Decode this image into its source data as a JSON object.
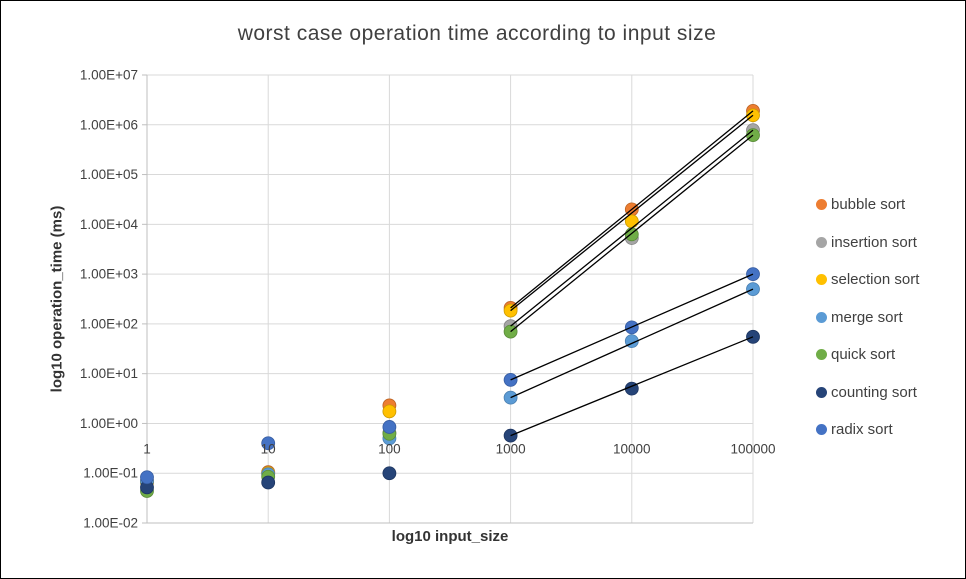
{
  "chart_data": {
    "type": "scatter",
    "title": "worst case operation time according to input size",
    "xlabel": "log10 input_size",
    "ylabel": "log10 operation_time (ms)",
    "x_scale": "log",
    "y_scale": "log",
    "x_range": [
      1,
      100000
    ],
    "y_range": [
      0.01,
      10000000
    ],
    "grid": true,
    "legend_position": "right",
    "x": [
      1,
      10,
      100,
      1000,
      10000,
      100000
    ],
    "x_ticks": [
      {
        "label": "1",
        "value": 1
      },
      {
        "label": "10",
        "value": 10
      },
      {
        "label": "100",
        "value": 100
      },
      {
        "label": "1000",
        "value": 1000
      },
      {
        "label": "10000",
        "value": 10000
      },
      {
        "label": "100000",
        "value": 100000
      }
    ],
    "y_ticks": [
      {
        "label": "1.00E+07",
        "value": 10000000
      },
      {
        "label": "1.00E+06",
        "value": 1000000
      },
      {
        "label": "1.00E+05",
        "value": 100000
      },
      {
        "label": "1.00E+04",
        "value": 10000
      },
      {
        "label": "1.00E+03",
        "value": 1000
      },
      {
        "label": "1.00E+02",
        "value": 100
      },
      {
        "label": "1.00E+01",
        "value": 10
      },
      {
        "label": "1.00E+00",
        "value": 1
      },
      {
        "label": "1.00E-01",
        "value": 0.1
      },
      {
        "label": "1.00E-02",
        "value": 0.01
      }
    ],
    "series": [
      {
        "name": "bubble sort",
        "color": "#ED7D31",
        "border": "#BC6424",
        "values": [
          0.07,
          0.105,
          2.3,
          210,
          20000,
          1900000
        ],
        "trendline": {
          "x1": 1000,
          "y1": 210,
          "x2": 100000,
          "y2": 1900000
        }
      },
      {
        "name": "insertion sort",
        "color": "#A5A5A5",
        "border": "#848484",
        "values": [
          0.065,
          0.1,
          0.65,
          90,
          5300,
          780000
        ],
        "trendline": {
          "x1": 1000,
          "y1": 90,
          "x2": 100000,
          "y2": 780000
        }
      },
      {
        "name": "selection sort",
        "color": "#FFC000",
        "border": "#CC9A00",
        "values": [
          0.066,
          0.1,
          1.75,
          185,
          11500,
          1550000
        ],
        "trendline": {
          "x1": 1000,
          "y1": 185,
          "x2": 100000,
          "y2": 1550000
        }
      },
      {
        "name": "merge sort",
        "color": "#5B9BD5",
        "border": "#4A7FB0",
        "values": [
          0.07,
          0.095,
          0.5,
          3.3,
          45,
          500
        ],
        "trendline": {
          "x1": 1000,
          "y1": 3.3,
          "x2": 100000,
          "y2": 500
        }
      },
      {
        "name": "quick sort",
        "color": "#70AD47",
        "border": "#5A8B39",
        "values": [
          0.044,
          0.085,
          0.62,
          70,
          6300,
          620000
        ],
        "trendline": {
          "x1": 1000,
          "y1": 70,
          "x2": 100000,
          "y2": 620000
        }
      },
      {
        "name": "counting sort",
        "color": "#264478",
        "border": "#1D3560",
        "values": [
          0.052,
          0.065,
          0.1,
          0.57,
          5,
          55
        ],
        "trendline": {
          "x1": 1000,
          "y1": 0.57,
          "x2": 100000,
          "y2": 55
        }
      },
      {
        "name": "radix sort",
        "color": "#4472C4",
        "border": "#365CA0",
        "values": [
          0.083,
          0.4,
          0.85,
          7.5,
          85,
          1000
        ],
        "trendline": {
          "x1": 1000,
          "y1": 7.5,
          "x2": 100000,
          "y2": 1000
        }
      }
    ],
    "colors": {
      "grid": "#D9D9D9",
      "axis": "#BFBFBF",
      "tick_text": "#404040",
      "title_text": "#404040",
      "axis_title_text": "#333333",
      "trendline": "#000000",
      "background": "#FFFFFF",
      "frame_border": "#000000"
    }
  }
}
